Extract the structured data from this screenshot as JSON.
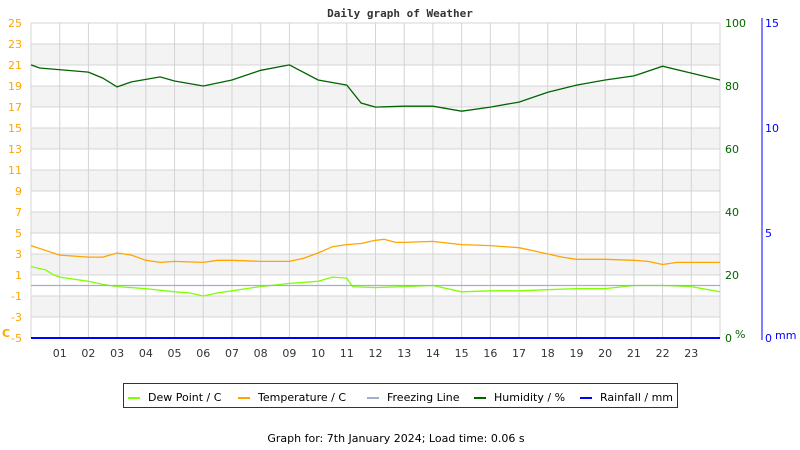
{
  "chart_data": {
    "type": "line",
    "title": "Daily graph of Weather",
    "footer": "Graph for: 7th January 2024; Load time: 0.06 s",
    "x_tick_labels": [
      "01",
      "02",
      "03",
      "04",
      "05",
      "06",
      "07",
      "08",
      "09",
      "10",
      "11",
      "12",
      "13",
      "14",
      "15",
      "16",
      "17",
      "18",
      "19",
      "20",
      "21",
      "22",
      "23"
    ],
    "xlim": [
      0,
      24
    ],
    "grid": true,
    "legend_placement": "bottom",
    "axes": {
      "temperature": {
        "ylim": [
          -5,
          25
        ],
        "ticks": [
          25,
          23,
          21,
          19,
          17,
          15,
          13,
          11,
          9,
          7,
          5,
          3,
          1,
          -1,
          -3,
          -5
        ],
        "unit_label": "C",
        "color": "#ffa500"
      },
      "humidity": {
        "ylim": [
          0,
          100
        ],
        "ticks": [
          100,
          80,
          60,
          40,
          20,
          0
        ],
        "unit_label": "%",
        "color": "#006400"
      },
      "rainfall": {
        "ylim": [
          0,
          15
        ],
        "ticks": [
          15,
          10,
          5,
          0
        ],
        "unit_label": "mm",
        "color": "#0000ff"
      }
    },
    "series": [
      {
        "name": "Dew Point / C",
        "axis": "temperature",
        "color": "#80ff00",
        "x": [
          0,
          0.5,
          0.8,
          1,
          2,
          2.5,
          3,
          4,
          5,
          5.5,
          6,
          6.5,
          7,
          7.5,
          8,
          9,
          10,
          10.5,
          11,
          11.2,
          12,
          13,
          14,
          15,
          16,
          17,
          18,
          19,
          20,
          21,
          22,
          23,
          24
        ],
        "y": [
          1.8,
          1.5,
          1.0,
          0.8,
          0.4,
          0.1,
          -0.1,
          -0.3,
          -0.6,
          -0.7,
          -1.0,
          -0.7,
          -0.5,
          -0.3,
          -0.1,
          0.2,
          0.4,
          0.8,
          0.7,
          -0.1,
          -0.2,
          -0.1,
          0.0,
          -0.6,
          -0.5,
          -0.5,
          -0.4,
          -0.3,
          -0.3,
          0.0,
          0.0,
          -0.1,
          -0.6
        ]
      },
      {
        "name": "Temperature / C",
        "axis": "temperature",
        "color": "#ffa500",
        "x": [
          0,
          1,
          2,
          2.5,
          3,
          3.5,
          4,
          4.5,
          5,
          6,
          6.5,
          7,
          8,
          9,
          9.5,
          10,
          10.5,
          11,
          11.5,
          12,
          12.3,
          12.7,
          13,
          14,
          15,
          16,
          17,
          17.5,
          18,
          18.5,
          19,
          20,
          21,
          21.5,
          22,
          22.5,
          23,
          24
        ],
        "y": [
          3.8,
          2.9,
          2.7,
          2.7,
          3.1,
          2.9,
          2.4,
          2.2,
          2.3,
          2.2,
          2.4,
          2.4,
          2.3,
          2.3,
          2.6,
          3.1,
          3.7,
          3.9,
          4.0,
          4.3,
          4.4,
          4.1,
          4.1,
          4.2,
          3.9,
          3.8,
          3.6,
          3.3,
          3.0,
          2.7,
          2.5,
          2.5,
          2.4,
          2.3,
          2.0,
          2.2,
          2.2,
          2.2
        ]
      },
      {
        "name": "Freezing Line",
        "axis": "temperature",
        "color": "#a0b0c8",
        "x": [
          0,
          24
        ],
        "y": [
          0,
          0
        ]
      },
      {
        "name": "Humidity / %",
        "axis": "humidity",
        "color": "#006400",
        "x": [
          0,
          0.3,
          2,
          2.5,
          3,
          3.5,
          4.5,
          5,
          6,
          7,
          8,
          9,
          10,
          11,
          11.5,
          12,
          13,
          14,
          15,
          16,
          17,
          18,
          19,
          20,
          21,
          22,
          23,
          24
        ],
        "y": [
          86.7,
          85.7,
          84.4,
          82.5,
          79.7,
          81.3,
          82.9,
          81.6,
          80,
          81.9,
          85,
          86.7,
          81.9,
          80.3,
          74.6,
          73.3,
          73.6,
          73.6,
          72,
          73.3,
          74.9,
          78,
          80.3,
          81.9,
          83.2,
          86.3,
          84.1,
          81.9
        ]
      },
      {
        "name": "Rainfall / mm",
        "axis": "rainfall",
        "color": "#0000ff",
        "x": [
          0,
          24
        ],
        "y": [
          0,
          0
        ]
      }
    ]
  }
}
